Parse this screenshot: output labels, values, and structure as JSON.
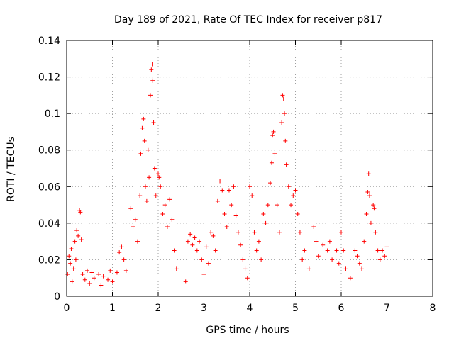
{
  "chart_data": {
    "type": "scatter",
    "title": "Day 189 of 2021, Rate Of TEC Index for receiver p817",
    "xlabel": "GPS time / hours",
    "ylabel": "ROTI / TECUs",
    "xlim": [
      0,
      8
    ],
    "ylim": [
      0,
      0.14
    ],
    "xticks": [
      0,
      1,
      2,
      3,
      4,
      5,
      6,
      7,
      8
    ],
    "yticks": [
      0,
      0.02,
      0.04,
      0.06,
      0.08,
      0.1,
      0.12,
      0.14
    ],
    "xtick_labels": [
      "0",
      "1",
      "2",
      "3",
      "4",
      "5",
      "6",
      "7",
      "8"
    ],
    "ytick_labels": [
      "0",
      "0.02",
      "0.04",
      "0.06",
      "0.08",
      "0.1",
      "0.12",
      "0.14"
    ],
    "grid": true,
    "marker": "+",
    "series": [
      {
        "name": "ROTI",
        "color": "#ff0000",
        "points": [
          [
            0.02,
            0.012
          ],
          [
            0.05,
            0.022
          ],
          [
            0.08,
            0.018
          ],
          [
            0.1,
            0.026
          ],
          [
            0.12,
            0.008
          ],
          [
            0.15,
            0.015
          ],
          [
            0.18,
            0.03
          ],
          [
            0.2,
            0.02
          ],
          [
            0.22,
            0.036
          ],
          [
            0.25,
            0.033
          ],
          [
            0.28,
            0.047
          ],
          [
            0.3,
            0.046
          ],
          [
            0.32,
            0.031
          ],
          [
            0.35,
            0.012
          ],
          [
            0.4,
            0.009
          ],
          [
            0.45,
            0.014
          ],
          [
            0.5,
            0.007
          ],
          [
            0.55,
            0.013
          ],
          [
            0.6,
            0.01
          ],
          [
            0.7,
            0.012
          ],
          [
            0.75,
            0.006
          ],
          [
            0.8,
            0.011
          ],
          [
            0.9,
            0.009
          ],
          [
            0.95,
            0.014
          ],
          [
            1.0,
            0.008
          ],
          [
            1.1,
            0.013
          ],
          [
            1.15,
            0.024
          ],
          [
            1.2,
            0.027
          ],
          [
            1.25,
            0.02
          ],
          [
            1.3,
            0.014
          ],
          [
            1.4,
            0.048
          ],
          [
            1.45,
            0.038
          ],
          [
            1.5,
            0.042
          ],
          [
            1.55,
            0.03
          ],
          [
            1.6,
            0.055
          ],
          [
            1.62,
            0.078
          ],
          [
            1.65,
            0.092
          ],
          [
            1.68,
            0.097
          ],
          [
            1.7,
            0.085
          ],
          [
            1.72,
            0.06
          ],
          [
            1.75,
            0.052
          ],
          [
            1.78,
            0.08
          ],
          [
            1.8,
            0.065
          ],
          [
            1.83,
            0.11
          ],
          [
            1.85,
            0.124
          ],
          [
            1.87,
            0.127
          ],
          [
            1.88,
            0.118
          ],
          [
            1.9,
            0.095
          ],
          [
            1.92,
            0.07
          ],
          [
            1.95,
            0.055
          ],
          [
            2.0,
            0.067
          ],
          [
            2.02,
            0.065
          ],
          [
            2.05,
            0.06
          ],
          [
            2.1,
            0.045
          ],
          [
            2.15,
            0.05
          ],
          [
            2.2,
            0.038
          ],
          [
            2.25,
            0.053
          ],
          [
            2.3,
            0.042
          ],
          [
            2.35,
            0.025
          ],
          [
            2.4,
            0.015
          ],
          [
            2.6,
            0.008
          ],
          [
            2.65,
            0.03
          ],
          [
            2.7,
            0.034
          ],
          [
            2.75,
            0.028
          ],
          [
            2.8,
            0.032
          ],
          [
            2.85,
            0.025
          ],
          [
            2.9,
            0.03
          ],
          [
            2.95,
            0.02
          ],
          [
            3.0,
            0.012
          ],
          [
            3.05,
            0.027
          ],
          [
            3.1,
            0.018
          ],
          [
            3.15,
            0.035
          ],
          [
            3.2,
            0.033
          ],
          [
            3.25,
            0.025
          ],
          [
            3.3,
            0.052
          ],
          [
            3.35,
            0.063
          ],
          [
            3.4,
            0.058
          ],
          [
            3.45,
            0.045
          ],
          [
            3.5,
            0.038
          ],
          [
            3.55,
            0.058
          ],
          [
            3.6,
            0.05
          ],
          [
            3.65,
            0.06
          ],
          [
            3.7,
            0.044
          ],
          [
            3.75,
            0.035
          ],
          [
            3.8,
            0.028
          ],
          [
            3.85,
            0.02
          ],
          [
            3.9,
            0.015
          ],
          [
            3.95,
            0.01
          ],
          [
            4.0,
            0.06
          ],
          [
            4.05,
            0.055
          ],
          [
            4.1,
            0.035
          ],
          [
            4.15,
            0.025
          ],
          [
            4.2,
            0.03
          ],
          [
            4.25,
            0.02
          ],
          [
            4.3,
            0.045
          ],
          [
            4.35,
            0.04
          ],
          [
            4.4,
            0.05
          ],
          [
            4.45,
            0.062
          ],
          [
            4.48,
            0.073
          ],
          [
            4.5,
            0.088
          ],
          [
            4.52,
            0.09
          ],
          [
            4.55,
            0.078
          ],
          [
            4.6,
            0.05
          ],
          [
            4.65,
            0.035
          ],
          [
            4.7,
            0.095
          ],
          [
            4.72,
            0.11
          ],
          [
            4.74,
            0.108
          ],
          [
            4.76,
            0.1
          ],
          [
            4.78,
            0.085
          ],
          [
            4.8,
            0.072
          ],
          [
            4.85,
            0.06
          ],
          [
            4.9,
            0.05
          ],
          [
            4.95,
            0.055
          ],
          [
            5.0,
            0.058
          ],
          [
            5.05,
            0.045
          ],
          [
            5.1,
            0.035
          ],
          [
            5.15,
            0.02
          ],
          [
            5.2,
            0.025
          ],
          [
            5.3,
            0.015
          ],
          [
            5.4,
            0.038
          ],
          [
            5.45,
            0.03
          ],
          [
            5.5,
            0.022
          ],
          [
            5.6,
            0.028
          ],
          [
            5.7,
            0.025
          ],
          [
            5.75,
            0.03
          ],
          [
            5.8,
            0.02
          ],
          [
            5.9,
            0.025
          ],
          [
            5.95,
            0.018
          ],
          [
            6.0,
            0.035
          ],
          [
            6.05,
            0.025
          ],
          [
            6.1,
            0.015
          ],
          [
            6.2,
            0.01
          ],
          [
            6.3,
            0.025
          ],
          [
            6.35,
            0.022
          ],
          [
            6.4,
            0.018
          ],
          [
            6.45,
            0.015
          ],
          [
            6.5,
            0.03
          ],
          [
            6.55,
            0.045
          ],
          [
            6.58,
            0.057
          ],
          [
            6.6,
            0.067
          ],
          [
            6.62,
            0.055
          ],
          [
            6.65,
            0.04
          ],
          [
            6.7,
            0.05
          ],
          [
            6.72,
            0.048
          ],
          [
            6.75,
            0.035
          ],
          [
            6.8,
            0.025
          ],
          [
            6.85,
            0.02
          ],
          [
            6.9,
            0.025
          ],
          [
            6.95,
            0.022
          ],
          [
            7.0,
            0.027
          ]
        ]
      }
    ]
  }
}
